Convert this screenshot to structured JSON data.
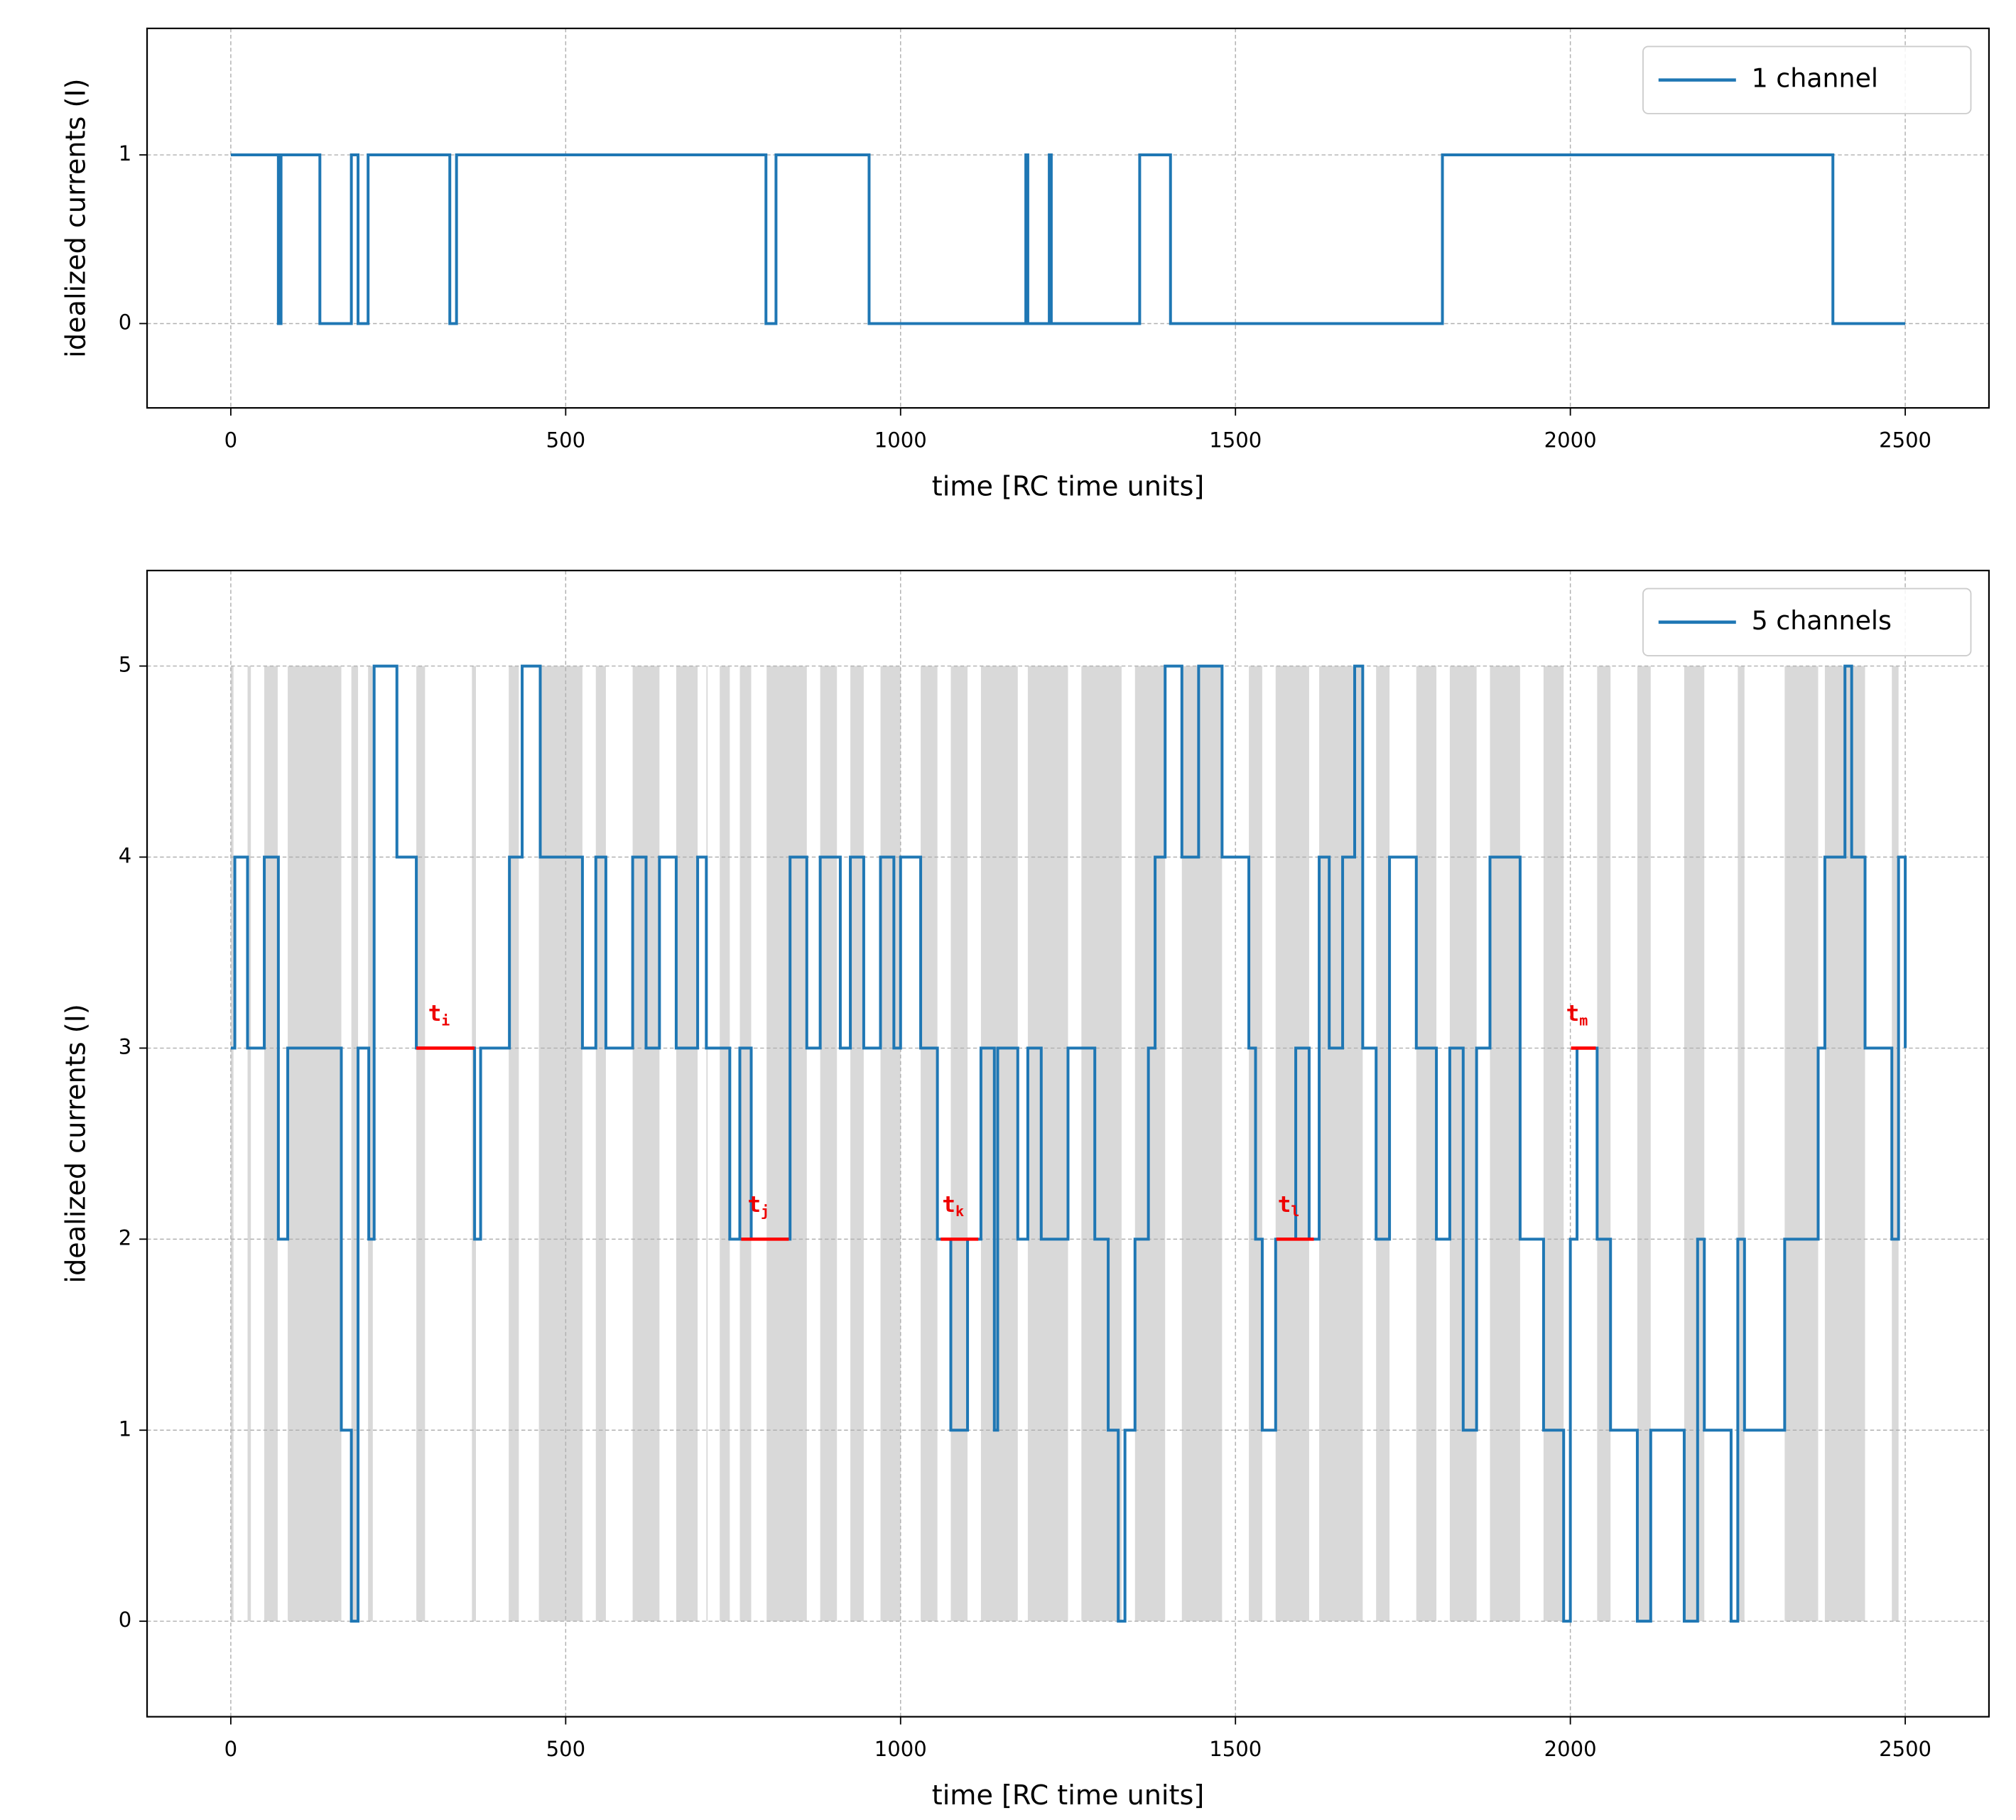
{
  "chart_data": [
    {
      "type": "step",
      "xlabel": "time [RC time units]",
      "ylabel": "idealized currents (I)",
      "xlim": [
        -125,
        2625
      ],
      "ylim": [
        -0.5,
        1.75
      ],
      "xticks": [
        0,
        500,
        1000,
        1500,
        2000,
        2500
      ],
      "yticks": [
        0,
        1
      ],
      "grid": true,
      "legend": "upper right",
      "series": [
        {
          "name": "1 channel",
          "color": "#1f77b4",
          "x": [
            0,
            71,
            75,
            133,
            180,
            190,
            205,
            327,
            337,
            799,
            814,
            953,
            1187,
            1190,
            1222,
            1225,
            1357,
            1403,
            1809,
            2392,
            2500
          ],
          "values": [
            1,
            0,
            1,
            0,
            1,
            0,
            1,
            0,
            1,
            0,
            1,
            0,
            1,
            0,
            1,
            0,
            1,
            0,
            1,
            0,
            0
          ]
        }
      ]
    },
    {
      "type": "step",
      "xlabel": "time [RC time units]",
      "ylabel": "idealized currents (I)",
      "xlim": [
        -125,
        2625
      ],
      "ylim": [
        -0.5,
        5.5
      ],
      "xticks": [
        0,
        500,
        1000,
        1500,
        2000,
        2500
      ],
      "yticks": [
        0,
        1,
        2,
        3,
        4,
        5
      ],
      "grid": true,
      "legend": "upper right",
      "band_color": "#d9d9d9",
      "bands": [
        [
          0,
          4
        ],
        [
          25,
          30
        ],
        [
          50,
          70
        ],
        [
          85,
          165
        ],
        [
          180,
          190
        ],
        [
          205,
          212
        ],
        [
          277,
          290
        ],
        [
          360,
          366
        ],
        [
          415,
          430
        ],
        [
          460,
          525
        ],
        [
          545,
          560
        ],
        [
          600,
          640
        ],
        [
          665,
          697
        ],
        [
          710,
          712
        ],
        [
          730,
          745
        ],
        [
          760,
          777
        ],
        [
          800,
          860
        ],
        [
          880,
          905
        ],
        [
          925,
          945
        ],
        [
          970,
          1000
        ],
        [
          1030,
          1055
        ],
        [
          1075,
          1100
        ],
        [
          1120,
          1175
        ],
        [
          1190,
          1250
        ],
        [
          1270,
          1330
        ],
        [
          1350,
          1395
        ],
        [
          1420,
          1480
        ],
        [
          1520,
          1540
        ],
        [
          1560,
          1610
        ],
        [
          1625,
          1690
        ],
        [
          1710,
          1730
        ],
        [
          1770,
          1800
        ],
        [
          1820,
          1860
        ],
        [
          1880,
          1925
        ],
        [
          1960,
          1990
        ],
        [
          2040,
          2060
        ],
        [
          2100,
          2120
        ],
        [
          2170,
          2200
        ],
        [
          2250,
          2260
        ],
        [
          2320,
          2370
        ],
        [
          2380,
          2440
        ],
        [
          2480,
          2490
        ]
      ],
      "annotations": [
        {
          "text": "t",
          "sub": "i",
          "x": [
            277,
            364
          ],
          "y": 3,
          "color": "#ff0000"
        },
        {
          "text": "t",
          "sub": "j",
          "x": [
            762,
            833
          ],
          "y": 2,
          "color": "#ff0000"
        },
        {
          "text": "t",
          "sub": "k",
          "x": [
            1060,
            1116
          ],
          "y": 2,
          "color": "#ff0000"
        },
        {
          "text": "t",
          "sub": "l",
          "x": [
            1561,
            1617
          ],
          "y": 2,
          "color": "#ff0000"
        },
        {
          "text": "t",
          "sub": "m",
          "x": [
            2001,
            2038
          ],
          "y": 3,
          "color": "#ff0000"
        }
      ],
      "series": [
        {
          "name": "5 channels",
          "color": "#1f77b4",
          "x": [
            0,
            6,
            25,
            50,
            71,
            85,
            165,
            180,
            190,
            206,
            214,
            248,
            277,
            364,
            373,
            416,
            435,
            462,
            525,
            545,
            560,
            600,
            620,
            640,
            665,
            697,
            710,
            745,
            760,
            777,
            835,
            860,
            880,
            910,
            925,
            945,
            970,
            990,
            1000,
            1030,
            1055,
            1075,
            1100,
            1120,
            1140,
            1145,
            1175,
            1190,
            1210,
            1250,
            1290,
            1310,
            1325,
            1335,
            1350,
            1370,
            1380,
            1395,
            1420,
            1445,
            1480,
            1520,
            1530,
            1540,
            1560,
            1590,
            1610,
            1625,
            1640,
            1660,
            1678,
            1690,
            1710,
            1730,
            1770,
            1800,
            1820,
            1840,
            1860,
            1880,
            1925,
            1960,
            1990,
            2000,
            2010,
            2040,
            2060,
            2100,
            2120,
            2170,
            2190,
            2200,
            2240,
            2250,
            2260,
            2320,
            2370,
            2380,
            2410,
            2420,
            2440,
            2480,
            2490,
            2500
          ],
          "values": [
            3,
            4,
            3,
            4,
            2,
            3,
            1,
            0,
            3,
            2,
            5,
            4,
            3,
            2,
            3,
            4,
            5,
            4,
            3,
            4,
            3,
            4,
            3,
            4,
            3,
            4,
            3,
            2,
            3,
            2,
            4,
            3,
            4,
            3,
            4,
            3,
            4,
            3,
            4,
            3,
            2,
            1,
            2,
            3,
            1,
            3,
            2,
            3,
            2,
            3,
            2,
            1,
            0,
            1,
            2,
            3,
            4,
            5,
            4,
            5,
            4,
            3,
            2,
            1,
            2,
            3,
            2,
            4,
            3,
            4,
            5,
            3,
            2,
            4,
            3,
            2,
            3,
            1,
            3,
            4,
            2,
            1,
            0,
            2,
            3,
            2,
            1,
            0,
            1,
            0,
            2,
            1,
            0,
            2,
            1,
            2,
            3,
            4,
            5,
            4,
            3,
            2,
            4,
            3
          ]
        }
      ]
    }
  ]
}
